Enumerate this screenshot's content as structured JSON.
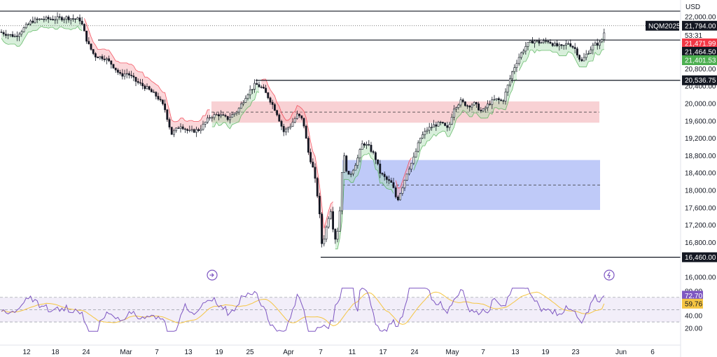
{
  "currency": "USD",
  "symbol": "NQM2025",
  "countdown": "53:31",
  "colors": {
    "up": "#2a2e39",
    "down": "#2a2e39",
    "red_zone": "#f5c1c6",
    "blue_zone": "#aab8f5",
    "trail_red": "#f7a6ad",
    "trail_green": "#a8dcb0",
    "rsi_line": "#7e57c2",
    "rsi_ma": "#f5c542",
    "tag_red": "#f23645",
    "tag_green": "#4caf50",
    "tag_dark": "#131722",
    "tag_purple": "#7e57c2",
    "tag_yellow": "#f5c542"
  },
  "chart_data": {
    "type": "candlestick",
    "ylim": [
      15900,
      22250
    ],
    "y_ticks": [
      "22,000.00",
      "20,800.00",
      "20,400.00",
      "20,000.00",
      "19,600.00",
      "19,200.00",
      "18,800.00",
      "18,400.00",
      "18,000.00",
      "17,600.00",
      "17,200.00",
      "16,800.00",
      "16,000.00"
    ],
    "x_ticks": [
      "12",
      "18",
      "24",
      "Mar",
      "7",
      "13",
      "19",
      "25",
      "Apr",
      "7",
      "11",
      "17",
      "24",
      "May",
      "7",
      "13",
      "19",
      "23",
      "Jun",
      "6"
    ],
    "price_tags": [
      {
        "label": "21,794.00",
        "value": 21794,
        "style": "dark"
      },
      {
        "label": "21,471.99",
        "value": 21472,
        "style": "red"
      },
      {
        "label": "21,464.50",
        "value": 21464.5,
        "style": "dark"
      },
      {
        "label": "21,401.53",
        "value": 21401.5,
        "style": "green"
      },
      {
        "label": "20,536.75",
        "value": 20536.75,
        "style": "dark"
      },
      {
        "label": "16,460.00",
        "value": 16460,
        "style": "dark"
      }
    ],
    "horizontal_levels": [
      22130,
      21464.5,
      20536.75,
      16460
    ],
    "last_price": 21794,
    "zones": [
      {
        "name": "supply",
        "top": 20050,
        "bottom": 19560,
        "mid": 19805
      },
      {
        "name": "demand",
        "top": 18700,
        "bottom": 17550,
        "mid": 18125
      }
    ],
    "rsi": {
      "ylim": [
        10,
        90
      ],
      "ticks": [
        "80.00",
        "40.00",
        "20.00"
      ],
      "overbought": 70,
      "oversold": 30,
      "middle": 50,
      "value": 72.7,
      "ma_value": 59.76,
      "value_label": "72.70",
      "ma_label": "59.76"
    }
  }
}
